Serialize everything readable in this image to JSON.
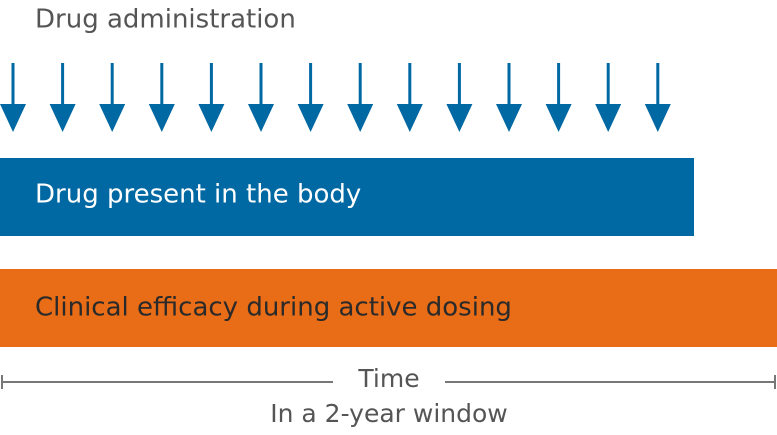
{
  "header": {
    "title": "Drug administration"
  },
  "bars": [
    {
      "label": "Drug present in the body"
    },
    {
      "label": "Clinical efficacy during active dosing"
    }
  ],
  "axis": {
    "label": "Time",
    "sublabel": "In a 2-year window"
  }
}
